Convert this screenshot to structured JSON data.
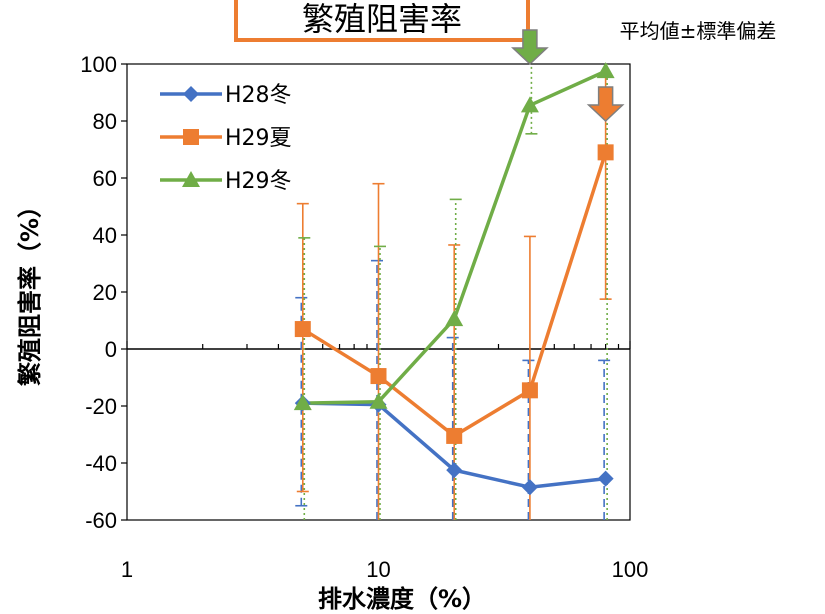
{
  "chart_data": {
    "type": "line",
    "title": "繁殖阻害率",
    "note": "平均値±標準偏差",
    "xlabel": "排水濃度（%）",
    "ylabel": "繁殖阻害率（%）",
    "xscale": "log",
    "xlim": [
      1,
      100
    ],
    "ylim": [
      -60,
      100
    ],
    "xticks": [
      1,
      10,
      100
    ],
    "yticks": [
      -60,
      -40,
      -20,
      0,
      20,
      40,
      60,
      80,
      100
    ],
    "grid": false,
    "legend_position": "top-left",
    "x": [
      5,
      10,
      20,
      40,
      80
    ],
    "series": [
      {
        "name": "H28冬",
        "color": "#4472c4",
        "marker": "diamond",
        "errorbar_style": "dashed",
        "values": [
          -19,
          -19.5,
          -42.5,
          -48.5,
          -45.5
        ],
        "err_low": [
          -55,
          null,
          null,
          null,
          null
        ],
        "err_high": [
          18,
          31,
          4,
          -4,
          -4
        ]
      },
      {
        "name": "H29夏",
        "color": "#ed7d31",
        "marker": "square",
        "errorbar_style": "solid",
        "values": [
          7,
          -9.5,
          -30.5,
          -14.5,
          69
        ],
        "err_low": [
          -50,
          null,
          null,
          null,
          17.5
        ],
        "err_high": [
          51,
          58,
          36.5,
          39.5,
          null
        ]
      },
      {
        "name": "H29冬",
        "color": "#70ad47",
        "marker": "triangle",
        "errorbar_style": "dotted",
        "values": [
          -19,
          -18.5,
          10.5,
          85.5,
          97.5
        ],
        "err_low": [
          null,
          null,
          null,
          75.5,
          null
        ],
        "err_high": [
          39,
          36,
          52.5,
          null,
          null
        ]
      }
    ],
    "annotations": [
      {
        "type": "down-arrow",
        "x": 40,
        "y": 100,
        "color": "#70ad47"
      },
      {
        "type": "down-arrow",
        "x": 80,
        "y": 80,
        "color": "#ed7d31"
      }
    ]
  }
}
